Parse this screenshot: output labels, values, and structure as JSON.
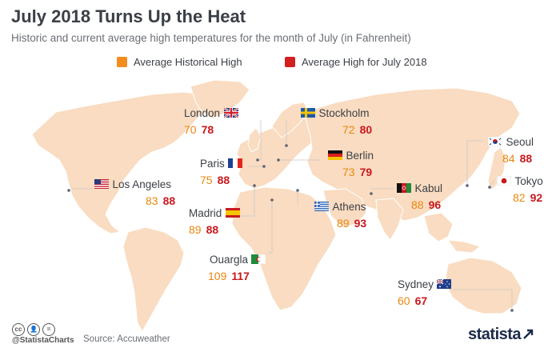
{
  "header": {
    "title": "July 2018 Turns Up the Heat",
    "subtitle": "Historic and current average high temperatures for the month of July (in Fahrenheit)"
  },
  "legend": {
    "historical": {
      "label": "Average Historical High",
      "color": "#f28c1e"
    },
    "current": {
      "label": "Average High for July 2018",
      "color": "#d21f1f"
    }
  },
  "colors": {
    "land": "#f9dcc1",
    "connector": "#c9c9c9",
    "hist_text": "#e8860f",
    "current_text": "#c8191e"
  },
  "cities": [
    {
      "id": "london",
      "name": "London",
      "flag": "uk-flag",
      "historical": "70",
      "current": "78"
    },
    {
      "id": "stockholm",
      "name": "Stockholm",
      "flag": "sweden-flag",
      "historical": "72",
      "current": "80"
    },
    {
      "id": "paris",
      "name": "Paris",
      "flag": "france-flag",
      "historical": "75",
      "current": "88"
    },
    {
      "id": "berlin",
      "name": "Berlin",
      "flag": "germany-flag",
      "historical": "73",
      "current": "79"
    },
    {
      "id": "los-angeles",
      "name": "Los Angeles",
      "flag": "usa-flag",
      "historical": "83",
      "current": "88"
    },
    {
      "id": "madrid",
      "name": "Madrid",
      "flag": "spain-flag",
      "historical": "89",
      "current": "88"
    },
    {
      "id": "athens",
      "name": "Athens",
      "flag": "greece-flag",
      "historical": "89",
      "current": "93"
    },
    {
      "id": "kabul",
      "name": "Kabul",
      "flag": "afghanistan-flag",
      "historical": "88",
      "current": "96"
    },
    {
      "id": "seoul",
      "name": "Seoul",
      "flag": "south-korea-flag",
      "historical": "84",
      "current": "88"
    },
    {
      "id": "tokyo",
      "name": "Tokyo",
      "flag": "japan-flag",
      "historical": "82",
      "current": "92"
    },
    {
      "id": "ouargla",
      "name": "Ouargla",
      "flag": "algeria-flag",
      "historical": "109",
      "current": "117"
    },
    {
      "id": "sydney",
      "name": "Sydney",
      "flag": "australia-flag",
      "historical": "60",
      "current": "67"
    }
  ],
  "footer": {
    "handle": "@StatistaCharts",
    "source": "Source: Accuweather",
    "brand": "statista",
    "license_icons": [
      "cc-icon",
      "attribution-icon",
      "no-derivatives-icon"
    ]
  }
}
